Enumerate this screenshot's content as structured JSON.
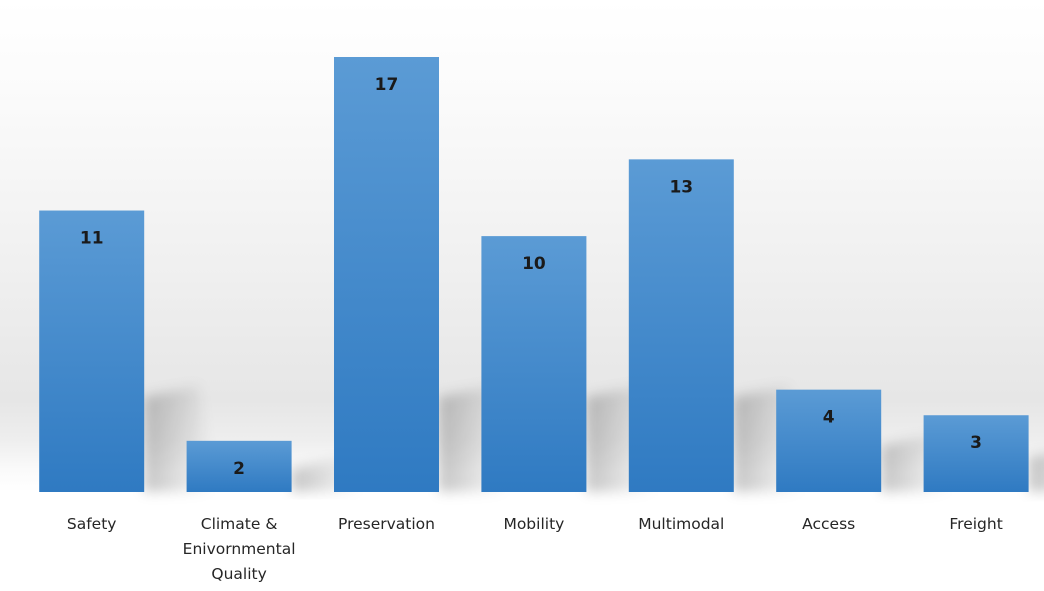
{
  "chart_data": {
    "type": "bar",
    "title": "",
    "xlabel": "",
    "ylabel": "",
    "categories": [
      [
        "Safety"
      ],
      [
        "Climate &",
        "Enivornmental",
        "Quality"
      ],
      [
        "Preservation"
      ],
      [
        "Mobility"
      ],
      [
        "Multimodal"
      ],
      [
        "Access"
      ],
      [
        "Freight"
      ]
    ],
    "values": [
      11,
      2,
      17,
      10,
      13,
      4,
      3
    ],
    "ylim": [
      0,
      17
    ],
    "grid": false,
    "legend": "none",
    "colors": {
      "bar_top": "#5b9bd5",
      "bar_bottom": "#2f7ac2",
      "label": "#1a1a1a",
      "tick": "#262626"
    }
  }
}
